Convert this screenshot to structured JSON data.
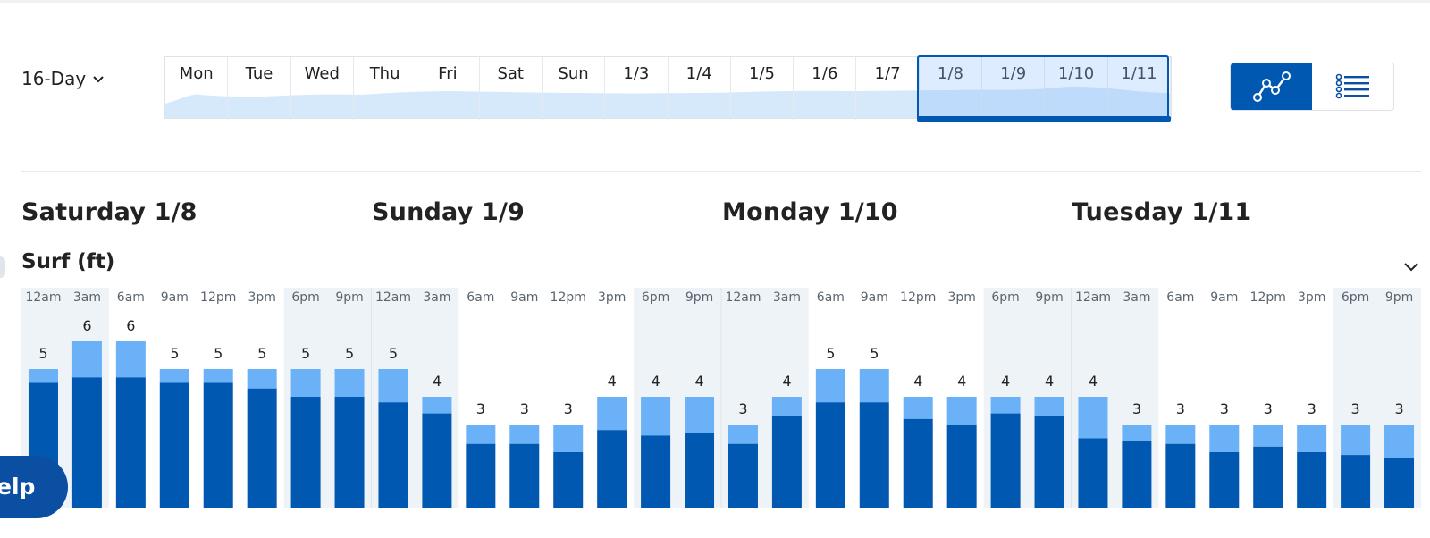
{
  "forecast_range": {
    "label": "16-Day",
    "icon": "chevron-down-icon"
  },
  "day_strip": {
    "days": [
      "Mon",
      "Tue",
      "Wed",
      "Thu",
      "Fri",
      "Sat",
      "Sun",
      "1/3",
      "1/4",
      "1/5",
      "1/6",
      "1/7",
      "1/8",
      "1/9",
      "1/10",
      "1/11"
    ],
    "selected": [
      "1/8",
      "1/9",
      "1/10",
      "1/11"
    ],
    "colors": {
      "wave": "#d6e9fb",
      "selected_fill": "#9ccaf7",
      "selected_border": "#0058b0"
    }
  },
  "view_toggle": {
    "graph_icon": "line-graph-icon",
    "list_icon": "list-icon",
    "active": "graph"
  },
  "day_headers": [
    "Saturday 1/8",
    "Sunday 1/9",
    "Monday 1/10",
    "Tuesday 1/11"
  ],
  "section": {
    "title": "Surf (ft)",
    "icon": "chevron-down-icon"
  },
  "help_button": {
    "label": "elp"
  },
  "chart_data": {
    "type": "bar",
    "title": "Surf (ft)",
    "categories": [
      "12am",
      "3am",
      "6am",
      "9am",
      "12pm",
      "3pm",
      "6pm",
      "9pm",
      "12am",
      "3am",
      "6am",
      "9am",
      "12pm",
      "3pm",
      "6pm",
      "9pm",
      "12am",
      "3am",
      "6am",
      "9am",
      "12pm",
      "3pm",
      "6pm",
      "9pm",
      "12am",
      "3am",
      "6am",
      "9am",
      "12pm",
      "3pm",
      "6pm",
      "9pm"
    ],
    "labels": [
      5,
      6,
      6,
      5,
      5,
      5,
      5,
      5,
      5,
      4,
      3,
      3,
      3,
      4,
      4,
      4,
      3,
      4,
      5,
      5,
      4,
      4,
      4,
      4,
      4,
      3,
      3,
      3,
      3,
      3,
      3,
      3
    ],
    "series": [
      {
        "values": [
          5.0,
          6.0,
          6.0,
          5.0,
          5.0,
          5.0,
          5.0,
          5.0,
          5.0,
          4.0,
          3.0,
          3.0,
          3.0,
          4.0,
          4.0,
          4.0,
          3.0,
          4.0,
          5.0,
          5.0,
          4.0,
          4.0,
          4.0,
          4.0,
          4.0,
          3.0,
          3.0,
          3.0,
          3.0,
          3.0,
          3.0,
          3.0
        ]
      },
      {
        "values": [
          4.5,
          4.7,
          4.7,
          4.5,
          4.5,
          4.3,
          4.0,
          4.0,
          3.8,
          3.4,
          2.3,
          2.3,
          2.0,
          2.8,
          2.6,
          2.7,
          2.3,
          3.3,
          3.8,
          3.8,
          3.2,
          3.0,
          3.4,
          3.3,
          2.5,
          2.4,
          2.3,
          2.0,
          2.2,
          2.0,
          1.9,
          1.8
        ]
      }
    ],
    "ylim": [
      0,
      6
    ],
    "shaded_hours": [
      "12am",
      "3am",
      "6pm",
      "9pm"
    ],
    "colors": {
      "swell": "#0058b0",
      "range": "#6ab1f8",
      "night_band": "#eef3f7"
    }
  }
}
